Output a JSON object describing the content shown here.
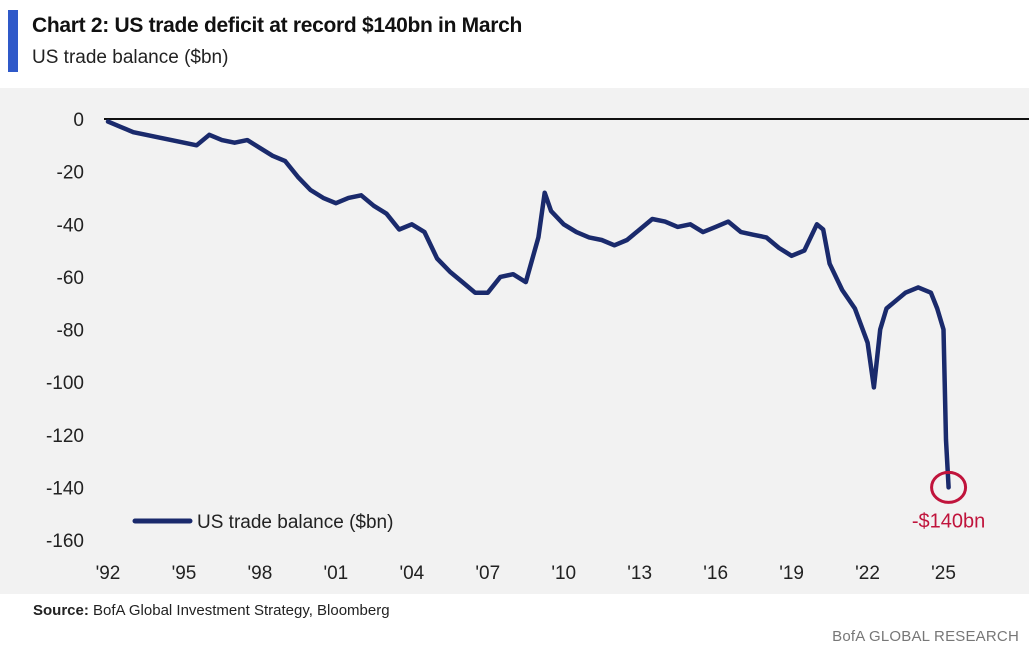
{
  "header": {
    "title": "Chart 2: US trade deficit at record $140bn in March",
    "subtitle": "US trade balance ($bn)"
  },
  "footer": {
    "source_label": "Source:",
    "source_text": "BofA Global Investment Strategy, Bloomberg",
    "brand": "BofA GLOBAL RESEARCH"
  },
  "colors": {
    "line": "#1a2a6c",
    "annotation": "#c0143c",
    "accent": "#2f59c9",
    "panel": "#f2f2f2"
  },
  "chart_data": {
    "type": "line",
    "title": "Chart 2: US trade deficit at record $140bn in March",
    "subtitle": "US trade balance ($bn)",
    "xlabel": "",
    "ylabel": "",
    "xlim": [
      1992,
      2028.1
    ],
    "ylim": [
      -160,
      0
    ],
    "yticks": [
      0,
      -20,
      -40,
      -60,
      -80,
      -100,
      -120,
      -140,
      -160
    ],
    "ytick_labels": [
      "0",
      "-20",
      "-40",
      "-60",
      "-80",
      "-100",
      "-120",
      "-140",
      "-160"
    ],
    "xticks": [
      1992,
      1995,
      1998,
      2001,
      2004,
      2007,
      2010,
      2013,
      2016,
      2019,
      2022,
      2025
    ],
    "xtick_labels": [
      "'92",
      "'95",
      "'98",
      "'01",
      "'04",
      "'07",
      "'10",
      "'13",
      "'16",
      "'19",
      "'22",
      "'25"
    ],
    "zero_line": true,
    "legend": {
      "label": "US trade balance ($bn)",
      "position": "bottom-left"
    },
    "annotation": {
      "label": "-$140bn",
      "x": 2025.2,
      "y": -140
    },
    "series": [
      {
        "name": "US trade balance ($bn)",
        "x": [
          1992.0,
          1992.5,
          1993.0,
          1993.5,
          1994.0,
          1994.5,
          1995.0,
          1995.5,
          1996.0,
          1996.5,
          1997.0,
          1997.5,
          1998.0,
          1998.5,
          1999.0,
          1999.5,
          2000.0,
          2000.5,
          2001.0,
          2001.5,
          2002.0,
          2002.5,
          2003.0,
          2003.5,
          2004.0,
          2004.5,
          2005.0,
          2005.5,
          2006.0,
          2006.5,
          2007.0,
          2007.5,
          2008.0,
          2008.5,
          2009.0,
          2009.25,
          2009.5,
          2010.0,
          2010.5,
          2011.0,
          2011.5,
          2012.0,
          2012.5,
          2013.0,
          2013.5,
          2014.0,
          2014.5,
          2015.0,
          2015.5,
          2016.0,
          2016.5,
          2017.0,
          2017.5,
          2018.0,
          2018.5,
          2019.0,
          2019.5,
          2020.0,
          2020.25,
          2020.5,
          2021.0,
          2021.5,
          2022.0,
          2022.25,
          2022.5,
          2022.75,
          2023.0,
          2023.5,
          2024.0,
          2024.5,
          2024.75,
          2025.0,
          2025.1,
          2025.2
        ],
        "values": [
          -1,
          -3,
          -5,
          -6,
          -7,
          -8,
          -9,
          -10,
          -6,
          -8,
          -9,
          -8,
          -11,
          -14,
          -16,
          -22,
          -27,
          -30,
          -32,
          -30,
          -29,
          -33,
          -36,
          -42,
          -40,
          -43,
          -53,
          -58,
          -62,
          -66,
          -66,
          -60,
          -59,
          -62,
          -45,
          -28,
          -35,
          -40,
          -43,
          -45,
          -46,
          -48,
          -46,
          -42,
          -38,
          -39,
          -41,
          -40,
          -43,
          -41,
          -39,
          -43,
          -44,
          -45,
          -49,
          -52,
          -50,
          -40,
          -42,
          -55,
          -65,
          -72,
          -85,
          -102,
          -80,
          -72,
          -70,
          -66,
          -64,
          -66,
          -72,
          -80,
          -122,
          -140
        ]
      }
    ]
  }
}
